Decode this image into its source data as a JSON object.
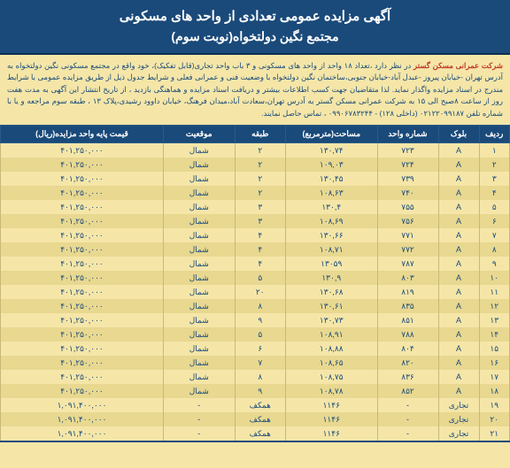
{
  "header": {
    "title1": "آگهی مزایده عمومی تعدادی از واحد های مسکونی",
    "title2": "مجتمع نگین دولتخواه(نوبت سوم)"
  },
  "description": {
    "company": "شرکت عمرانی مسکن گستر",
    "body": " در نظر دارد ،تعداد ۱۸ واحد از واحد های مسکونی و ۳ باب واحد تجاری(قابل تفکیک)، خود واقع در مجتمع مسکونی نگین دولتخواه به آدرس تهران -خیابان پیروز -عبدل آباد-خیابان جنوبی،ساختمان نگین دولتخواه با وضعیت فنی و عمرانی فعلی و شرایط جدول ذیل از طریق مزایده عمومی با شرایط مندرج در اسناد مزایده واگذار نماید. لذا متقاضیان جهت کسب اطلاعات بیشتر و دریافت اسناد مزایده و هماهنگی بازدید ، از تاریخ انتشار این آگهی به مدت هفت روز از ساعت ۸صبح الی ۱۵ به شرکت عمرانی مسکن گستر به آدرس تهران،سعادت آباد،میدان فرهنگ، خیابان داوود رشیدی،پلاک ۱۳ ، طبقه سوم مراجعه و یا با شماره تلفن ۰۲۱۲۲۰۹۹۱۸۷ (داخلی ۱۲۸) - ۰۹۹۰۶۷۸۳۲۴۴ ، تماس حاصل نمایند."
  },
  "columns": [
    "ردیف",
    "بلوک",
    "شماره واحد",
    "مساحت(مترمربع)",
    "طبقه",
    "موقعیت",
    "قیمت پایه واحد مزایده(ریال)"
  ],
  "rows": [
    {
      "r": "۱",
      "block": "A",
      "unit": "۷۲۳",
      "area": "۱۳۰,۷۴",
      "floor": "۲",
      "dir": "شمال",
      "price": "۴۰۱,۲۵۰,۰۰۰"
    },
    {
      "r": "۲",
      "block": "A",
      "unit": "۷۲۴",
      "area": "۱۰۹,۰۳",
      "floor": "۲",
      "dir": "شمال",
      "price": "۴۰۱,۲۵۰,۰۰۰"
    },
    {
      "r": "۳",
      "block": "A",
      "unit": "۷۳۹",
      "area": "۱۳۰,۴۵",
      "floor": "۲",
      "dir": "شمال",
      "price": "۴۰۱,۲۵۰,۰۰۰"
    },
    {
      "r": "۴",
      "block": "A",
      "unit": "۷۴۰",
      "area": "۱۰۸,۶۳",
      "floor": "۲",
      "dir": "شمال",
      "price": "۴۰۱,۲۵۰,۰۰۰"
    },
    {
      "r": "۵",
      "block": "A",
      "unit": "۷۵۵",
      "area": "۱۳۰,۴",
      "floor": "۳",
      "dir": "شمال",
      "price": "۴۰۱,۲۵۰,۰۰۰"
    },
    {
      "r": "۶",
      "block": "A",
      "unit": "۷۵۶",
      "area": "۱۰۸,۶۹",
      "floor": "۳",
      "dir": "شمال",
      "price": "۴۰۱,۲۵۰,۰۰۰"
    },
    {
      "r": "۷",
      "block": "A",
      "unit": "۷۷۱",
      "area": "۱۳۰,۶۶",
      "floor": "۴",
      "dir": "شمال",
      "price": "۴۰۱,۲۵۰,۰۰۰"
    },
    {
      "r": "۸",
      "block": "A",
      "unit": "۷۷۲",
      "area": "۱۰۸,۷۱",
      "floor": "۴",
      "dir": "شمال",
      "price": "۴۰۱,۲۵۰,۰۰۰"
    },
    {
      "r": "۹",
      "block": "A",
      "unit": "۷۸۷",
      "area": "۱۳۰۵۹",
      "floor": "۴",
      "dir": "شمال",
      "price": "۴۰۱,۲۵۰,۰۰۰"
    },
    {
      "r": "۱۰",
      "block": "A",
      "unit": "۸۰۳",
      "area": "۱۳۰,۹",
      "floor": "۵",
      "dir": "شمال",
      "price": "۴۰۱,۲۵۰,۰۰۰"
    },
    {
      "r": "۱۱",
      "block": "A",
      "unit": "۸۱۹",
      "area": "۱۳۰,۶۸",
      "floor": "۲۰",
      "dir": "شمال",
      "price": "۴۰۱,۲۵۰,۰۰۰"
    },
    {
      "r": "۱۲",
      "block": "A",
      "unit": "۸۳۵",
      "area": "۱۳۰,۶۱",
      "floor": "۸",
      "dir": "شمال",
      "price": "۴۰۱,۲۵۰,۰۰۰"
    },
    {
      "r": "۱۳",
      "block": "A",
      "unit": "۸۵۱",
      "area": "۱۳۰,۷۳",
      "floor": "۹",
      "dir": "شمال",
      "price": "۴۰۱,۲۵۰,۰۰۰"
    },
    {
      "r": "۱۴",
      "block": "A",
      "unit": "۷۸۸",
      "area": "۱۰۸,۹۱",
      "floor": "۵",
      "dir": "شمال",
      "price": "۴۰۱,۲۵۰,۰۰۰"
    },
    {
      "r": "۱۵",
      "block": "A",
      "unit": "۸۰۴",
      "area": "۱۰۸,۸۸",
      "floor": "۶",
      "dir": "شمال",
      "price": "۴۰۱,۲۵۰,۰۰۰"
    },
    {
      "r": "۱۶",
      "block": "A",
      "unit": "۸۲۰",
      "area": "۱۰۸,۶۵",
      "floor": "۷",
      "dir": "شمال",
      "price": "۴۰۱,۲۵۰,۰۰۰"
    },
    {
      "r": "۱۷",
      "block": "A",
      "unit": "۸۳۶",
      "area": "۱۰۸,۷۵",
      "floor": "۸",
      "dir": "شمال",
      "price": "۴۰۱,۲۵۰,۰۰۰"
    },
    {
      "r": "۱۸",
      "block": "A",
      "unit": "۸۵۲",
      "area": "۱۰۸,۷۸",
      "floor": "۹",
      "dir": "شمال",
      "price": "۴۰۱,۲۵۰,۰۰۰"
    },
    {
      "r": "۱۹",
      "block": "تجاری",
      "unit": "-",
      "area": "۱۱۴۶",
      "floor": "همکف",
      "dir": "-",
      "price": "۱,۰۹۱,۴۰۰,۰۰۰"
    },
    {
      "r": "۲۰",
      "block": "تجاری",
      "unit": "-",
      "area": "۱۱۴۶",
      "floor": "همکف",
      "dir": "-",
      "price": "۱,۰۹۱,۴۰۰,۰۰۰"
    },
    {
      "r": "۲۱",
      "block": "تجاری",
      "unit": "-",
      "area": "۱۱۴۶",
      "floor": "همکف",
      "dir": "-",
      "price": "۱,۰۹۱,۴۰۰,۰۰۰"
    }
  ],
  "colors": {
    "header_bg": "#1a4a7a",
    "header_text": "#ffffff",
    "page_bg": "#f5e6a8",
    "row_alt": "#e8d890",
    "company": "#c0392b"
  }
}
